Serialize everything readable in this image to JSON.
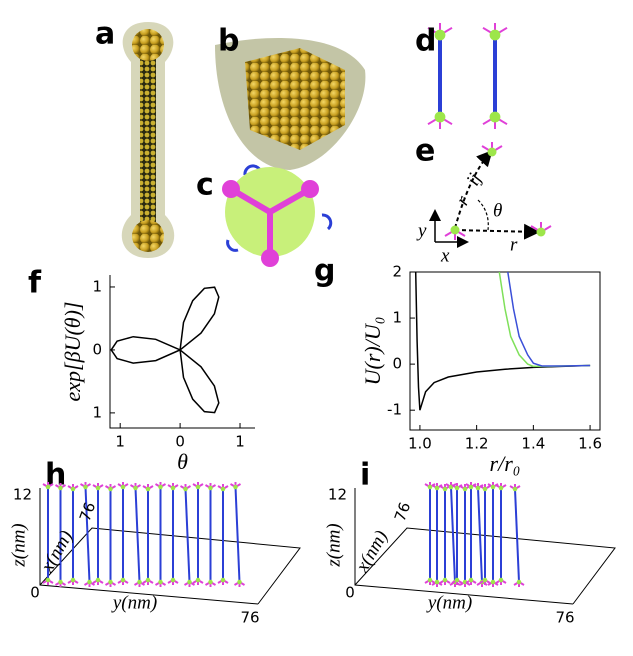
{
  "panel_labels": {
    "a": "a",
    "b": "b",
    "c": "c",
    "d": "d",
    "e": "e",
    "f": "f",
    "g": "g",
    "h": "h",
    "i": "i"
  },
  "panel_e": {
    "r_ij": "r⃗ij",
    "theta": "θ",
    "r": "r⃗",
    "x": "x",
    "y": "y"
  },
  "panel_h": {
    "z_top": "12",
    "z_label": "z(nm)",
    "x_top": "76",
    "x_label": "x(nm)",
    "origin": "0",
    "y_label": "y(nm)",
    "y_end": "76"
  },
  "panel_i": {
    "z_top": "12",
    "z_label": "z(nm)",
    "x_top": "76",
    "x_label": "x(nm)",
    "origin": "0",
    "y_label": "y(nm)",
    "y_end": "76"
  },
  "chart_data": [
    {
      "type": "line",
      "xlabel": "θ",
      "ylabel": "exp[βU(θ)]",
      "xlim": [
        -1.17,
        1.25
      ],
      "ylim": [
        -1.24,
        1.19
      ],
      "xticks": [
        {
          "value": -1,
          "label": "1"
        },
        0,
        1
      ],
      "yticks": [
        1,
        0,
        {
          "value": -1,
          "label": "1"
        }
      ],
      "series": [
        {
          "color": "#000000",
          "x": [
            0,
            0.349,
            0.573,
            0.645,
            0.575,
            0.406,
            0.21,
            0.057,
            0,
            -0.407,
            -0.783,
            -1.051,
            -1.15,
            -1.051,
            -0.782,
            -0.406,
            0,
            0.057,
            0.21,
            0.406,
            0.575,
            0.645,
            0.573,
            0.349,
            0
          ],
          "values": [
            0,
            0.268,
            0.573,
            0.841,
            0.996,
            0.979,
            0.782,
            0.436,
            0,
            0.168,
            0.21,
            0.138,
            0,
            -0.138,
            -0.209,
            -0.169,
            0,
            -0.436,
            -0.782,
            -0.979,
            -0.996,
            -0.841,
            -0.573,
            -0.268,
            0
          ]
        }
      ]
    },
    {
      "type": "line",
      "xlabel": "r/r₀",
      "ylabel": "U(r)/U₀",
      "xlim": [
        0.965,
        1.635
      ],
      "ylim": [
        -1.43,
        2
      ],
      "xticks": [
        {
          "value": 1,
          "label": "1.0"
        },
        {
          "value": 1.2,
          "label": "1.2"
        },
        {
          "value": 1.4,
          "label": "1.4"
        },
        {
          "value": 1.6,
          "label": "1.6"
        }
      ],
      "yticks": [
        -1,
        0,
        1,
        2
      ],
      "series": [
        {
          "color": "#000000",
          "x": [
            0.985,
            0.99,
            0.995,
            1.0,
            1.02,
            1.05,
            1.1,
            1.2,
            1.3,
            1.4,
            1.5,
            1.6
          ],
          "values": [
            2,
            0.5,
            -0.5,
            -1,
            -0.6,
            -0.4,
            -0.28,
            -0.17,
            -0.11,
            -0.07,
            -0.05,
            -0.03
          ]
        },
        {
          "color": "#7fe05a",
          "x": [
            1.28,
            1.3,
            1.32,
            1.35,
            1.38,
            1.4,
            1.45,
            1.5,
            1.6
          ],
          "values": [
            2,
            1.2,
            0.6,
            0.2,
            0,
            -0.05,
            -0.05,
            -0.04,
            -0.03
          ]
        },
        {
          "color": "#3b4fd8",
          "x": [
            1.31,
            1.33,
            1.35,
            1.38,
            1.4,
            1.43,
            1.5,
            1.6
          ],
          "values": [
            2,
            1.2,
            0.6,
            0.2,
            0.02,
            -0.04,
            -0.04,
            -0.03
          ]
        }
      ]
    }
  ]
}
